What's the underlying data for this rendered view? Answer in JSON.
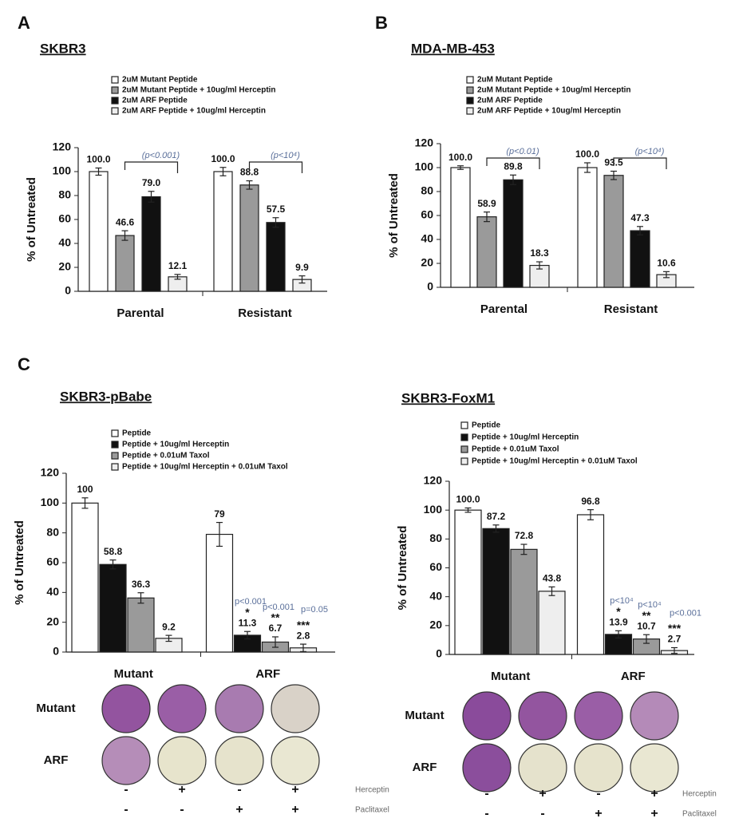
{
  "panel_labels": [
    "A",
    "B",
    "C"
  ],
  "chart_data": [
    {
      "type": "bar",
      "title": "SKBR3",
      "ylabel": "% of Untreated",
      "categories": [
        "Parental",
        "Resistant"
      ],
      "ylim": [
        0,
        120
      ],
      "yticks": [
        0,
        20,
        40,
        60,
        80,
        100,
        120
      ],
      "series": [
        {
          "name": "2uM Mutant Peptide",
          "color": "#ffffff",
          "values": [
            100,
            100
          ],
          "value_labels": [
            "100.0",
            "100.0"
          ],
          "errors": [
            3,
            3.5
          ]
        },
        {
          "name": "2uM Mutant Peptide + 10ug/ml Herceptin",
          "color": "#9a9a9a",
          "values": [
            46.6,
            88.8
          ],
          "value_labels": [
            "46.6",
            "88.8"
          ],
          "errors": [
            4,
            3.5
          ]
        },
        {
          "name": "2uM ARF Peptide",
          "color": "#111111",
          "values": [
            79.0,
            57.5
          ],
          "value_labels": [
            "79.0",
            "57.5"
          ],
          "errors": [
            4.5,
            4
          ]
        },
        {
          "name": "2uM ARF Peptide + 10ug/ml Herceptin",
          "color": "#eeeeee",
          "values": [
            12.1,
            9.9
          ],
          "value_labels": [
            "12.1",
            "9.9"
          ],
          "errors": [
            2,
            3
          ]
        }
      ],
      "annotations": [
        "(p<0.001)",
        "(p<10⁴)"
      ]
    },
    {
      "type": "bar",
      "title": "MDA-MB-453",
      "ylabel": "% of Untreated",
      "categories": [
        "Parental",
        "Resistant"
      ],
      "ylim": [
        0,
        120
      ],
      "yticks": [
        0,
        20,
        40,
        60,
        80,
        100,
        120
      ],
      "series": [
        {
          "name": "2uM Mutant Peptide",
          "color": "#ffffff",
          "values": [
            100,
            100
          ],
          "value_labels": [
            "100.0",
            "100.0"
          ],
          "errors": [
            1.5,
            4
          ]
        },
        {
          "name": "2uM Mutant Peptide + 10ug/ml Herceptin",
          "color": "#9a9a9a",
          "values": [
            58.9,
            93.5
          ],
          "value_labels": [
            "58.9",
            "93.5"
          ],
          "errors": [
            4,
            3.5
          ]
        },
        {
          "name": "2uM ARF Peptide",
          "color": "#111111",
          "values": [
            89.8,
            47.3
          ],
          "value_labels": [
            "89.8",
            "47.3"
          ],
          "errors": [
            4,
            3.5
          ]
        },
        {
          "name": "2uM ARF Peptide + 10ug/ml Herceptin",
          "color": "#eeeeee",
          "values": [
            18.3,
            10.6
          ],
          "value_labels": [
            "18.3",
            "10.6"
          ],
          "errors": [
            3,
            2.5
          ]
        }
      ],
      "annotations": [
        "(p<0.01)",
        "(p<10⁴)"
      ]
    },
    {
      "type": "bar",
      "title": "SKBR3-pBabe",
      "ylabel": "% of Untreated",
      "categories": [
        "Mutant",
        "ARF"
      ],
      "ylim": [
        0,
        120
      ],
      "yticks": [
        0,
        20,
        40,
        60,
        80,
        100,
        120
      ],
      "series": [
        {
          "name": "Peptide",
          "color": "#ffffff",
          "values": [
            100,
            79
          ],
          "value_labels": [
            "100",
            "79"
          ],
          "errors": [
            3.5,
            8
          ]
        },
        {
          "name": "Peptide + 10ug/ml Herceptin",
          "color": "#111111",
          "values": [
            58.8,
            11.3
          ],
          "value_labels": [
            "58.8",
            "11.3"
          ],
          "errors": [
            3,
            2.5
          ]
        },
        {
          "name": "Peptide + 0.01uM Taxol",
          "color": "#9a9a9a",
          "values": [
            36.3,
            6.7
          ],
          "value_labels": [
            "36.3",
            "6.7"
          ],
          "errors": [
            3.5,
            3.5
          ]
        },
        {
          "name": "Peptide + 10ug/ml Herceptin + 0.01uM Taxol",
          "color": "#eeeeee",
          "values": [
            9.2,
            2.8
          ],
          "value_labels": [
            "9.2",
            "2.8"
          ],
          "errors": [
            2,
            2.5
          ]
        }
      ],
      "significance": [
        {
          "stars": "*",
          "p": "p<0.001"
        },
        {
          "stars": "**",
          "p": "p<0.001"
        },
        {
          "stars": "***",
          "p": "p=0.05"
        }
      ]
    },
    {
      "type": "bar",
      "title": "SKBR3-FoxM1",
      "ylabel": "% of Untreated",
      "categories": [
        "Mutant",
        "ARF"
      ],
      "ylim": [
        0,
        120
      ],
      "yticks": [
        0,
        20,
        40,
        60,
        80,
        100,
        120
      ],
      "series": [
        {
          "name": "Peptide",
          "color": "#ffffff",
          "values": [
            100.0,
            96.8
          ],
          "value_labels": [
            "100.0",
            "96.8"
          ],
          "errors": [
            1.5,
            3.5
          ]
        },
        {
          "name": "Peptide + 10ug/ml Herceptin",
          "color": "#111111",
          "values": [
            87.2,
            13.9
          ],
          "value_labels": [
            "87.2",
            "13.9"
          ],
          "errors": [
            2.5,
            2.5
          ]
        },
        {
          "name": "Peptide + 0.01uM Taxol",
          "color": "#9a9a9a",
          "values": [
            72.8,
            10.7
          ],
          "value_labels": [
            "72.8",
            "10.7"
          ],
          "errors": [
            3.5,
            3
          ]
        },
        {
          "name": "Peptide + 10ug/ml Herceptin + 0.01uM Taxol",
          "color": "#eeeeee",
          "values": [
            43.8,
            2.7
          ],
          "value_labels": [
            "43.8",
            "2.7"
          ],
          "errors": [
            3,
            2
          ]
        }
      ],
      "significance": [
        {
          "stars": "*",
          "p": "p<10⁴"
        },
        {
          "stars": "**",
          "p": "p<10⁴"
        },
        {
          "stars": "***",
          "p": "p<0.001"
        }
      ]
    }
  ],
  "colony_assays": [
    {
      "row_labels": [
        "Mutant",
        "ARF"
      ],
      "treatments": [
        {
          "name": "Herceptin",
          "signs": [
            "-",
            "+",
            "-",
            "+"
          ]
        },
        {
          "name": "Paclitaxel",
          "signs": [
            "-",
            "-",
            "+",
            "+"
          ]
        }
      ]
    },
    {
      "row_labels": [
        "Mutant",
        "ARF"
      ],
      "treatments": [
        {
          "name": "Herceptin",
          "signs": [
            "-",
            "+",
            "-",
            "+"
          ]
        },
        {
          "name": "Paclitaxel",
          "signs": [
            "-",
            "-",
            "+",
            "+"
          ]
        }
      ]
    }
  ]
}
